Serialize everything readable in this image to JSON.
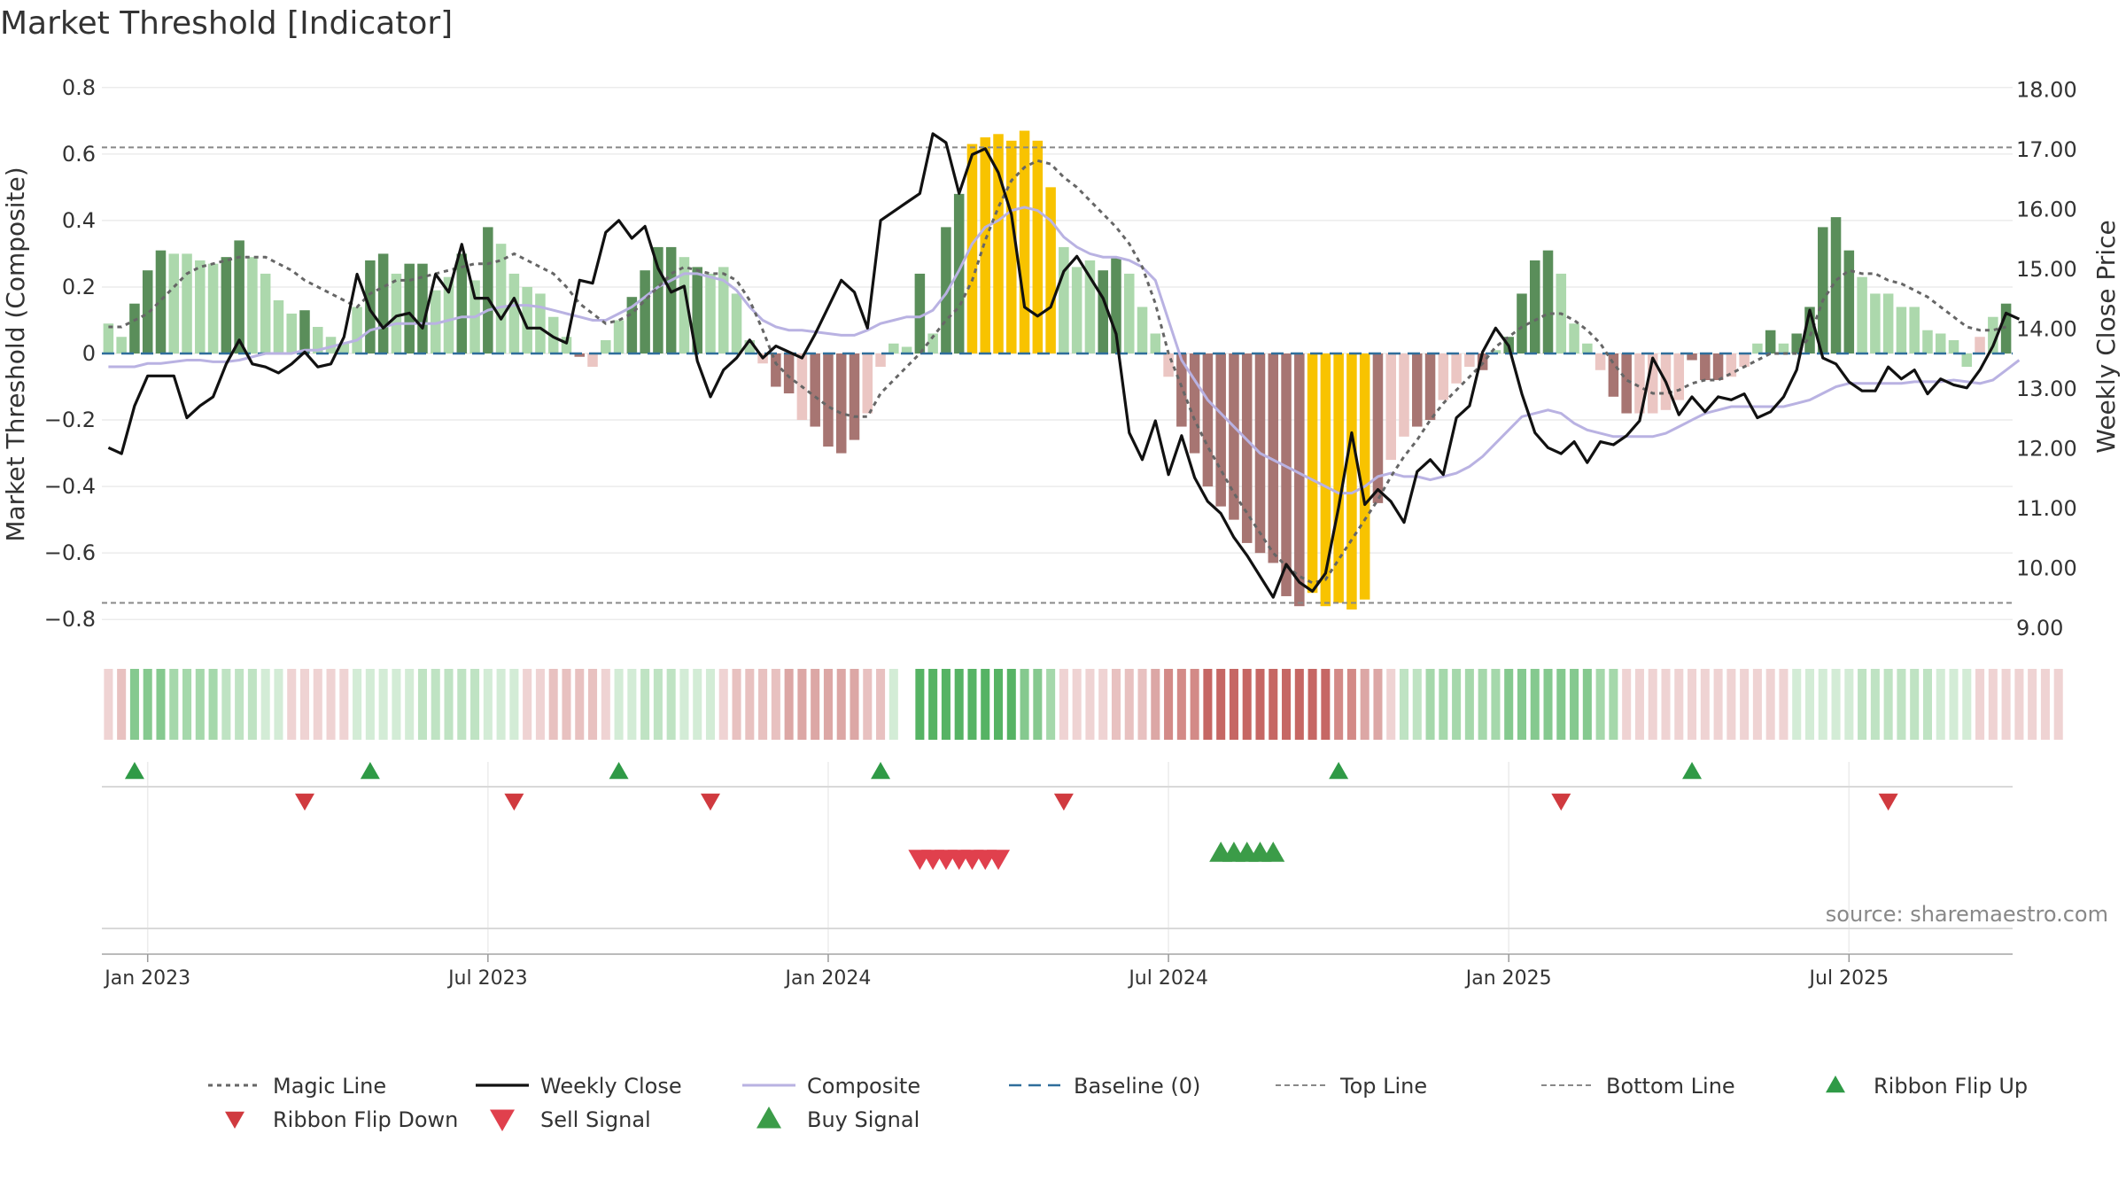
{
  "chart_data": {
    "type": "bar",
    "title": "Market Threshold [Indicator]",
    "ylabel": "Market Threshold (Composite)",
    "y2label": "Weekly Close Price",
    "ylim": [
      -0.85,
      0.85
    ],
    "y2lim": [
      8.85,
      18.3
    ],
    "yticks": [
      "0.8",
      "0.6",
      "0.4",
      "0.2",
      "0",
      "−0.2",
      "−0.4",
      "−0.6",
      "−0.8"
    ],
    "yticks_values": [
      0.8,
      0.6,
      0.4,
      0.2,
      0,
      -0.2,
      -0.4,
      -0.6,
      -0.8
    ],
    "y2ticks": [
      "18.00",
      "17.00",
      "16.00",
      "15.00",
      "14.00",
      "13.00",
      "12.00",
      "11.00",
      "10.00",
      "9.00"
    ],
    "y2ticks_values": [
      18,
      17,
      16,
      15,
      14,
      13,
      12,
      11,
      10,
      9
    ],
    "xticks": [
      "Jan 2023",
      "Jul 2023",
      "Jan 2024",
      "Jul 2024",
      "Jan 2025",
      "Jul 2025"
    ],
    "xticks_index": [
      3,
      29,
      55,
      81,
      107,
      133
    ],
    "top_line": 0.62,
    "bottom_line": -0.75,
    "baseline": 0,
    "grid": true,
    "legend_position": "bottom",
    "source": "source: sharemaestro.com",
    "bar_colors": {
      "1": "#5a8e5a",
      "2": "#acd8ac",
      "3": "#a77572",
      "4": "#ebc6c3",
      "5": "#f8c300"
    },
    "bars": [
      0.09,
      0.05,
      0.15,
      0.25,
      0.31,
      0.3,
      0.3,
      0.28,
      0.27,
      0.29,
      0.34,
      0.29,
      0.24,
      0.16,
      0.12,
      0.13,
      0.08,
      0.05,
      0.03,
      0.14,
      0.28,
      0.3,
      0.24,
      0.27,
      0.27,
      0.19,
      0.23,
      0.3,
      0.22,
      0.38,
      0.33,
      0.24,
      0.2,
      0.18,
      0.11,
      0.05,
      -0.01,
      -0.04,
      0.04,
      0.1,
      0.17,
      0.25,
      0.32,
      0.32,
      0.29,
      0.26,
      0.24,
      0.26,
      0.18,
      0.04,
      -0.03,
      -0.1,
      -0.12,
      -0.2,
      -0.22,
      -0.28,
      -0.3,
      -0.26,
      -0.18,
      -0.04,
      0.03,
      0.02,
      0.24,
      0.06,
      0.38,
      0.48,
      0.63,
      0.65,
      0.66,
      0.64,
      0.67,
      0.64,
      0.5,
      0.32,
      0.26,
      0.28,
      0.25,
      0.29,
      0.24,
      0.14,
      0.06,
      -0.07,
      -0.22,
      -0.3,
      -0.4,
      -0.46,
      -0.5,
      -0.57,
      -0.6,
      -0.63,
      -0.73,
      -0.76,
      -0.72,
      -0.76,
      -0.75,
      -0.77,
      -0.74,
      -0.45,
      -0.32,
      -0.25,
      -0.22,
      -0.2,
      -0.14,
      -0.09,
      -0.04,
      -0.05,
      0.01,
      0.05,
      0.18,
      0.28,
      0.31,
      0.24,
      0.09,
      0.03,
      -0.05,
      -0.13,
      -0.18,
      -0.18,
      -0.18,
      -0.17,
      -0.14,
      -0.02,
      -0.08,
      -0.08,
      -0.07,
      -0.04,
      0.03,
      0.07,
      0.03,
      0.06,
      0.14,
      0.38,
      0.41,
      0.31,
      0.23,
      0.18,
      0.18,
      0.14,
      0.14,
      0.07,
      0.06,
      0.04,
      -0.04,
      0.05,
      0.11,
      0.15
    ],
    "bar_states": [
      2,
      2,
      1,
      1,
      1,
      2,
      2,
      2,
      2,
      1,
      1,
      2,
      2,
      2,
      2,
      1,
      2,
      2,
      2,
      2,
      1,
      1,
      2,
      1,
      1,
      2,
      2,
      1,
      2,
      1,
      2,
      2,
      2,
      2,
      2,
      2,
      3,
      4,
      2,
      2,
      1,
      1,
      1,
      1,
      2,
      1,
      2,
      2,
      2,
      2,
      4,
      3,
      3,
      4,
      3,
      3,
      3,
      3,
      4,
      4,
      2,
      2,
      1,
      2,
      1,
      1,
      5,
      5,
      5,
      5,
      5,
      5,
      5,
      2,
      2,
      2,
      1,
      1,
      2,
      2,
      2,
      4,
      3,
      3,
      3,
      3,
      3,
      3,
      3,
      3,
      3,
      3,
      5,
      5,
      5,
      5,
      5,
      3,
      4,
      4,
      3,
      3,
      4,
      4,
      4,
      3,
      2,
      1,
      1,
      1,
      1,
      2,
      2,
      2,
      4,
      3,
      3,
      4,
      4,
      4,
      4,
      3,
      3,
      3,
      4,
      4,
      2,
      1,
      2,
      1,
      1,
      1,
      1,
      1,
      2,
      2,
      2,
      2,
      2,
      2,
      2,
      2,
      2,
      4,
      2,
      1,
      1
    ],
    "series": [
      {
        "name": "Magic Line",
        "values": [
          0.08,
          0.08,
          0.1,
          0.12,
          0.16,
          0.2,
          0.24,
          0.26,
          0.27,
          0.28,
          0.29,
          0.29,
          0.29,
          0.27,
          0.25,
          0.22,
          0.2,
          0.18,
          0.16,
          0.14,
          0.18,
          0.2,
          0.22,
          0.22,
          0.23,
          0.24,
          0.25,
          0.26,
          0.27,
          0.27,
          0.28,
          0.3,
          0.28,
          0.26,
          0.24,
          0.2,
          0.15,
          0.12,
          0.09,
          0.1,
          0.12,
          0.16,
          0.2,
          0.24,
          0.26,
          0.25,
          0.24,
          0.24,
          0.22,
          0.16,
          0.07,
          -0.03,
          -0.07,
          -0.1,
          -0.13,
          -0.16,
          -0.18,
          -0.19,
          -0.19,
          -0.12,
          -0.08,
          -0.04,
          0.0,
          0.05,
          0.1,
          0.14,
          0.22,
          0.34,
          0.44,
          0.52,
          0.56,
          0.58,
          0.57,
          0.53,
          0.5,
          0.46,
          0.42,
          0.38,
          0.33,
          0.26,
          0.15,
          0.0,
          -0.1,
          -0.2,
          -0.28,
          -0.35,
          -0.42,
          -0.48,
          -0.54,
          -0.6,
          -0.64,
          -0.67,
          -0.69,
          -0.68,
          -0.62,
          -0.56,
          -0.5,
          -0.44,
          -0.37,
          -0.31,
          -0.26,
          -0.2,
          -0.15,
          -0.11,
          -0.07,
          -0.03,
          0.02,
          0.05,
          0.08,
          0.1,
          0.12,
          0.12,
          0.1,
          0.07,
          0.03,
          -0.03,
          -0.08,
          -0.1,
          -0.12,
          -0.12,
          -0.11,
          -0.09,
          -0.08,
          -0.08,
          -0.06,
          -0.04,
          -0.02,
          0.0,
          0.0,
          0.0,
          0.05,
          0.16,
          0.22,
          0.25,
          0.24,
          0.24,
          0.22,
          0.21,
          0.19,
          0.17,
          0.14,
          0.11,
          0.08,
          0.07,
          0.07,
          0.08
        ],
        "color": "#666666"
      },
      {
        "name": "Weekly Close",
        "values": [
          12.0,
          11.9,
          12.7,
          13.2,
          13.2,
          13.2,
          12.5,
          12.7,
          12.85,
          13.4,
          13.8,
          13.4,
          13.35,
          13.25,
          13.4,
          13.6,
          13.35,
          13.4,
          13.85,
          14.9,
          14.3,
          14.0,
          14.2,
          14.25,
          14.0,
          14.9,
          14.6,
          15.4,
          14.5,
          14.5,
          14.15,
          14.5,
          14.0,
          14.0,
          13.85,
          13.75,
          14.8,
          14.75,
          15.6,
          15.8,
          15.5,
          15.7,
          15.0,
          14.6,
          14.7,
          13.45,
          12.85,
          13.3,
          13.5,
          13.8,
          13.5,
          13.7,
          13.6,
          13.5,
          13.9,
          14.35,
          14.8,
          14.6,
          14.0,
          15.8,
          15.95,
          16.1,
          16.25,
          17.25,
          17.1,
          16.25,
          16.9,
          17.0,
          16.6,
          15.9,
          14.35,
          14.2,
          14.35,
          14.95,
          15.2,
          14.85,
          14.5,
          13.9,
          12.25,
          11.8,
          12.45,
          11.55,
          12.2,
          11.5,
          11.1,
          10.9,
          10.5,
          10.2,
          9.85,
          9.5,
          10.05,
          9.75,
          9.6,
          9.9,
          11.0,
          12.25,
          11.05,
          11.3,
          11.1,
          10.75,
          11.6,
          11.8,
          11.55,
          12.5,
          12.7,
          13.6,
          14.0,
          13.7,
          12.9,
          12.25,
          12.0,
          11.9,
          12.1,
          11.75,
          12.1,
          12.05,
          12.2,
          12.45,
          13.5,
          13.1,
          12.55,
          12.85,
          12.6,
          12.85,
          12.8,
          12.9,
          12.5,
          12.6,
          12.85,
          13.3,
          14.3,
          13.5,
          13.4,
          13.1,
          12.95,
          12.95,
          13.35,
          13.15,
          13.3,
          12.9,
          13.15,
          13.05,
          13.0,
          13.3,
          13.7,
          14.25,
          14.15
        ],
        "color": "#111111"
      },
      {
        "name": "Composite",
        "values": [
          -0.04,
          -0.04,
          -0.04,
          -0.03,
          -0.03,
          -0.025,
          -0.02,
          -0.02,
          -0.025,
          -0.025,
          -0.02,
          -0.01,
          0.0,
          0.0,
          0.0,
          0.01,
          0.01,
          0.02,
          0.03,
          0.04,
          0.07,
          0.08,
          0.09,
          0.09,
          0.09,
          0.09,
          0.1,
          0.11,
          0.11,
          0.13,
          0.14,
          0.145,
          0.145,
          0.14,
          0.13,
          0.12,
          0.11,
          0.1,
          0.1,
          0.12,
          0.14,
          0.17,
          0.2,
          0.22,
          0.24,
          0.24,
          0.23,
          0.22,
          0.19,
          0.14,
          0.1,
          0.08,
          0.07,
          0.07,
          0.065,
          0.06,
          0.055,
          0.055,
          0.07,
          0.09,
          0.1,
          0.11,
          0.11,
          0.13,
          0.18,
          0.25,
          0.33,
          0.38,
          0.4,
          0.43,
          0.44,
          0.43,
          0.4,
          0.35,
          0.32,
          0.3,
          0.29,
          0.29,
          0.28,
          0.26,
          0.22,
          0.1,
          -0.02,
          -0.08,
          -0.14,
          -0.18,
          -0.22,
          -0.26,
          -0.3,
          -0.32,
          -0.34,
          -0.36,
          -0.38,
          -0.4,
          -0.42,
          -0.42,
          -0.4,
          -0.37,
          -0.36,
          -0.37,
          -0.37,
          -0.38,
          -0.37,
          -0.36,
          -0.34,
          -0.31,
          -0.27,
          -0.23,
          -0.19,
          -0.18,
          -0.17,
          -0.18,
          -0.21,
          -0.23,
          -0.24,
          -0.25,
          -0.25,
          -0.25,
          -0.25,
          -0.24,
          -0.22,
          -0.2,
          -0.18,
          -0.17,
          -0.16,
          -0.16,
          -0.16,
          -0.16,
          -0.16,
          -0.15,
          -0.14,
          -0.12,
          -0.1,
          -0.09,
          -0.09,
          -0.09,
          -0.09,
          -0.09,
          -0.085,
          -0.085,
          -0.085,
          -0.08,
          -0.085,
          -0.09,
          -0.08,
          -0.05,
          -0.02
        ],
        "color": "#b9b2e2"
      },
      {
        "name": "Baseline (0)",
        "values": [
          0
        ],
        "color": "#2f6e9b"
      },
      {
        "name": "Top Line",
        "values": [
          0.62
        ],
        "color": "#888888"
      },
      {
        "name": "Bottom Line",
        "values": [
          -0.75
        ],
        "color": "#888888"
      }
    ],
    "ribbon": [
      "r1",
      "r2",
      "g4",
      "g4",
      "g4",
      "g3",
      "g3",
      "g3",
      "g3",
      "g2",
      "g2",
      "g2",
      "g1",
      "g1",
      "r1",
      "r1",
      "r1",
      "r1",
      "r1",
      "g1",
      "g1",
      "g1",
      "g1",
      "g1",
      "g2",
      "g2",
      "g2",
      "g2",
      "g2",
      "g1",
      "g1",
      "g1",
      "r1",
      "r1",
      "r2",
      "r2",
      "r2",
      "r2",
      "r1",
      "g1",
      "g1",
      "g2",
      "g2",
      "g2",
      "g1",
      "g1",
      "g1",
      "r1",
      "r2",
      "r2",
      "r2",
      "r2",
      "r3",
      "r3",
      "r3",
      "r3",
      "r3",
      "r3",
      "r2",
      "r2",
      "g1",
      "none",
      "g5",
      "g5",
      "g5",
      "g5",
      "g5",
      "g5",
      "g5",
      "g5",
      "g4",
      "g4",
      "g3",
      "r1",
      "r1",
      "r1",
      "r1",
      "r2",
      "r2",
      "r2",
      "r3",
      "r4",
      "r4",
      "r4",
      "r5",
      "r5",
      "r5",
      "r5",
      "r5",
      "r5",
      "r5",
      "r5",
      "r5",
      "r5",
      "r4",
      "r4",
      "r3",
      "r3",
      "r1",
      "g2",
      "g2",
      "g3",
      "g3",
      "g3",
      "g3",
      "g3",
      "g3",
      "g4",
      "g4",
      "g4",
      "g4",
      "g4",
      "g4",
      "g4",
      "g3",
      "g3",
      "r1",
      "r1",
      "r1",
      "r1",
      "r1",
      "r1",
      "r1",
      "r1",
      "r1",
      "r1",
      "r1",
      "r1",
      "r1",
      "g1",
      "g1",
      "g1",
      "g1",
      "g1",
      "g2",
      "g2",
      "g2",
      "g2",
      "g2",
      "g2",
      "g1",
      "g1",
      "g1",
      "r1",
      "r1",
      "r1",
      "r1",
      "r1",
      "r1",
      "r1"
    ],
    "ribbon_colors": {
      "g1": "#d3ecd6",
      "g2": "#bfe3c3",
      "g3": "#a5d8ab",
      "g4": "#85c98f",
      "g5": "#56b364",
      "r1": "#efd3d3",
      "r2": "#e8c1c0",
      "r3": "#dca7a5",
      "r4": "#d38a87",
      "r5": "#c66764"
    },
    "ribbon_flip_up": [
      2,
      20,
      39,
      59,
      94,
      121
    ],
    "ribbon_flip_down": [
      15,
      31,
      46,
      73,
      111,
      136
    ],
    "sell_signals": [
      62,
      63,
      64,
      65,
      66,
      67,
      68
    ],
    "buy_signals": [
      85,
      86,
      87,
      88,
      89
    ],
    "signal_colors": {
      "flip_up": "#2f9a46",
      "flip_down": "#d03a3f",
      "sell": "#e0404d",
      "buy": "#3b9c48"
    },
    "legend": [
      "Magic Line",
      "Weekly Close",
      "Composite",
      "Baseline (0)",
      "Top Line",
      "Bottom Line",
      "Ribbon Flip Up",
      "Ribbon Flip Down",
      "Sell Signal",
      "Buy Signal"
    ]
  }
}
